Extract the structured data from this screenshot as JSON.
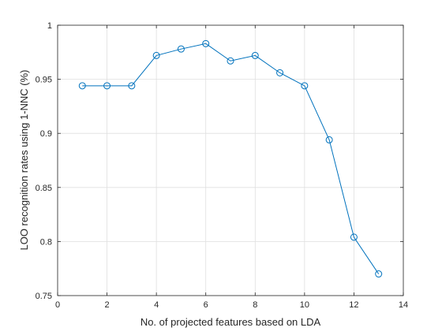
{
  "chart_data": {
    "type": "line",
    "xlabel": "No. of projected features based on LDA",
    "ylabel": "LOO recognition rates using 1-NNC (%)",
    "xlim": [
      0,
      14
    ],
    "ylim": [
      0.75,
      1
    ],
    "xticks": [
      0,
      2,
      4,
      6,
      8,
      10,
      12,
      14
    ],
    "yticks": [
      0.75,
      0.8,
      0.85,
      0.9,
      0.95,
      1
    ],
    "xtick_labels": [
      "0",
      "2",
      "4",
      "6",
      "8",
      "10",
      "12",
      "14"
    ],
    "ytick_labels": [
      "0.75",
      "0.8",
      "0.85",
      "0.9",
      "0.95",
      "1"
    ],
    "grid": true,
    "marker": "circle",
    "series": [
      {
        "x": [
          1,
          2,
          3,
          4,
          5,
          6,
          7,
          8,
          9,
          10,
          11,
          12,
          13
        ],
        "y": [
          0.944,
          0.944,
          0.944,
          0.972,
          0.978,
          0.983,
          0.967,
          0.972,
          0.956,
          0.944,
          0.894,
          0.804,
          0.77
        ],
        "color": "#0072BD"
      }
    ]
  }
}
